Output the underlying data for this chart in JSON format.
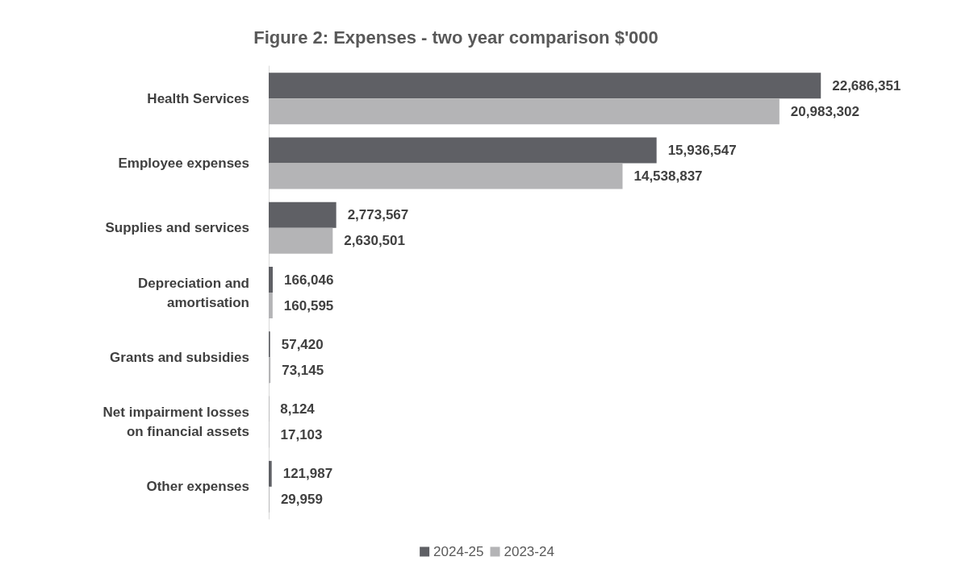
{
  "chart_data": {
    "type": "bar",
    "orientation": "horizontal",
    "title": "Figure 2: Expenses - two year comparison $'000",
    "categories": [
      "Health Services",
      "Employee expenses",
      "Supplies and services",
      "Depreciation and amortisation",
      "Grants and subsidies",
      "Net impairment losses on financial assets",
      "Other expenses"
    ],
    "series": [
      {
        "name": "2024-25",
        "color": "#5f6065",
        "values": [
          22686351,
          15936547,
          2773567,
          166046,
          57420,
          8124,
          121987
        ],
        "value_labels": [
          "22,686,351",
          "15,936,547",
          "2,773,567",
          "166,046",
          "57,420",
          "8,124",
          "121,987"
        ]
      },
      {
        "name": "2023-24",
        "color": "#b4b4b6",
        "values": [
          20983302,
          14538837,
          2630501,
          160595,
          73145,
          17103,
          29959
        ],
        "value_labels": [
          "20,983,302",
          "14,538,837",
          "2,630,501",
          "160,595",
          "73,145",
          "17,103",
          "29,959"
        ]
      }
    ],
    "legend": "bottom"
  }
}
